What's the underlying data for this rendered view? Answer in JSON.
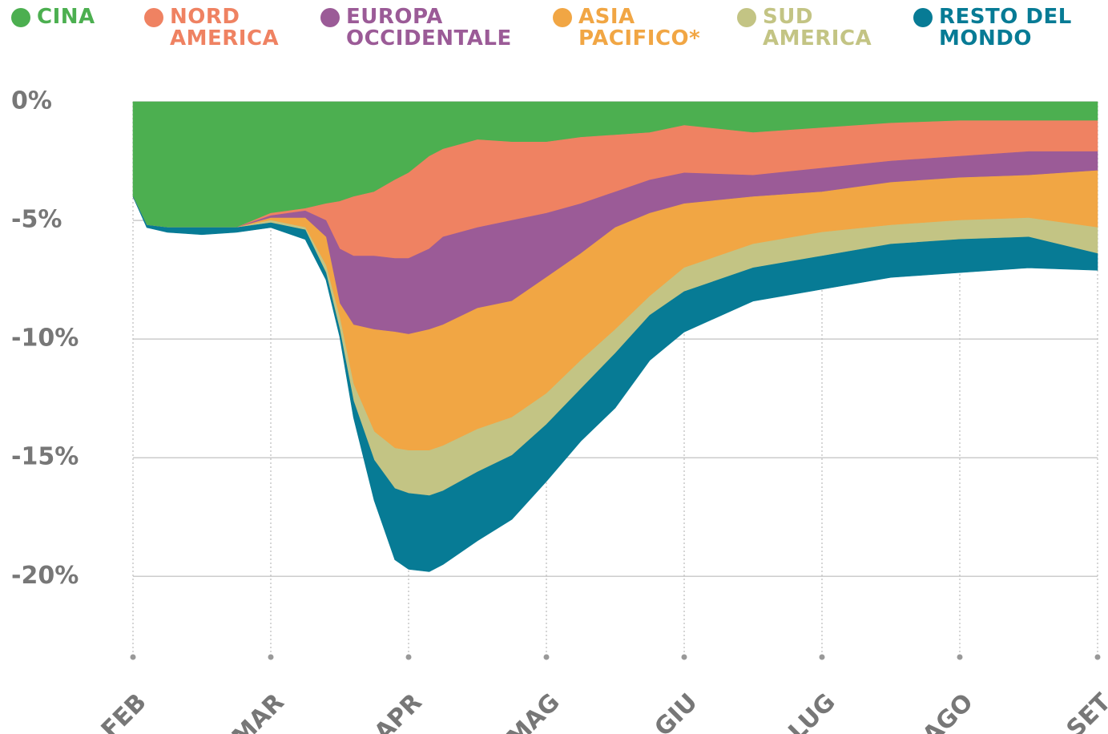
{
  "chart_data": {
    "type": "stacked-area",
    "x": [
      0,
      0.1,
      0.25,
      0.5,
      0.75,
      1.0,
      1.25,
      1.4,
      1.5,
      1.6,
      1.75,
      1.9,
      2.0,
      2.15,
      2.25,
      2.5,
      2.75,
      3.0,
      3.25,
      3.5,
      3.75,
      4.0,
      4.5,
      5.0,
      5.5,
      6.0,
      6.5,
      7.0
    ],
    "xlim": [
      0,
      7
    ],
    "xticks": [
      {
        "value": 0,
        "label": "FEB"
      },
      {
        "value": 1,
        "label": "MAR"
      },
      {
        "value": 2,
        "label": "APR"
      },
      {
        "value": 3,
        "label": "MAG"
      },
      {
        "value": 4,
        "label": "GIU"
      },
      {
        "value": 5,
        "label": "LUG"
      },
      {
        "value": 6,
        "label": "AGO"
      },
      {
        "value": 7,
        "label": "SET"
      }
    ],
    "ylim": [
      -23.4,
      0
    ],
    "yticks": [
      {
        "value": 0,
        "label": "0%"
      },
      {
        "value": -5,
        "label": "-5%"
      },
      {
        "value": -10,
        "label": "-10%"
      },
      {
        "value": -15,
        "label": "-15%"
      },
      {
        "value": -20,
        "label": "-20%"
      }
    ],
    "grid": true,
    "series": [
      {
        "name": "CINA",
        "color": "#4caf50",
        "values": [
          -4.0,
          -5.2,
          -5.3,
          -5.3,
          -5.3,
          -4.7,
          -4.5,
          -4.3,
          -4.2,
          -4.0,
          -3.8,
          -3.3,
          -3.0,
          -2.3,
          -2.0,
          -1.6,
          -1.7,
          -1.7,
          -1.5,
          -1.4,
          -1.3,
          -1.0,
          -1.3,
          -1.1,
          -0.9,
          -0.8,
          -0.8,
          -0.8
        ]
      },
      {
        "name": "NORD AMERICA",
        "color": "#ef8262",
        "values": [
          0,
          0,
          0,
          0,
          0,
          -0.1,
          -0.1,
          -0.7,
          -2.0,
          -2.5,
          -2.7,
          -3.3,
          -3.6,
          -3.9,
          -3.7,
          -3.7,
          -3.3,
          -3.0,
          -2.8,
          -2.4,
          -2.0,
          -2.0,
          -1.8,
          -1.7,
          -1.6,
          -1.5,
          -1.3,
          -1.3
        ]
      },
      {
        "name": "EUROPA OCCIDENTALE",
        "color": "#9b5b97",
        "values": [
          0,
          0,
          0,
          0,
          0,
          -0.1,
          -0.3,
          -0.7,
          -2.3,
          -2.9,
          -3.1,
          -3.1,
          -3.2,
          -3.4,
          -3.7,
          -3.4,
          -3.4,
          -2.7,
          -2.1,
          -1.5,
          -1.4,
          -1.3,
          -0.9,
          -1.0,
          -0.9,
          -0.9,
          -1.0,
          -0.8
        ]
      },
      {
        "name": "ASIA PACIFICO*",
        "color": "#f1a644",
        "values": [
          0,
          0,
          0,
          0,
          0,
          -0.1,
          -0.4,
          -1.2,
          -0.6,
          -2.5,
          -4.3,
          -4.9,
          -4.9,
          -5.1,
          -5.1,
          -5.1,
          -4.9,
          -4.9,
          -4.5,
          -4.3,
          -3.5,
          -2.7,
          -2.0,
          -1.7,
          -1.8,
          -1.8,
          -1.8,
          -2.4
        ]
      },
      {
        "name": "SUD AMERICA",
        "color": "#c3c484",
        "values": [
          0,
          0,
          0,
          0,
          0,
          -0.1,
          -0.1,
          -0.3,
          -0.5,
          -0.7,
          -1.2,
          -1.7,
          -1.8,
          -1.9,
          -1.9,
          -1.8,
          -1.6,
          -1.3,
          -1.2,
          -1.0,
          -0.8,
          -1.0,
          -1.0,
          -1.0,
          -0.8,
          -0.8,
          -0.8,
          -1.1
        ]
      },
      {
        "name": "RESTO DEL MONDO",
        "color": "#077b95",
        "values": [
          0,
          -0.1,
          -0.2,
          -0.3,
          -0.2,
          -0.2,
          -0.4,
          -0.3,
          -0.3,
          -0.7,
          -1.7,
          -3.0,
          -3.2,
          -3.2,
          -3.1,
          -2.9,
          -2.7,
          -2.4,
          -2.2,
          -2.3,
          -1.9,
          -1.7,
          -1.4,
          -1.4,
          -1.4,
          -1.4,
          -1.3,
          -0.7
        ]
      }
    ]
  }
}
